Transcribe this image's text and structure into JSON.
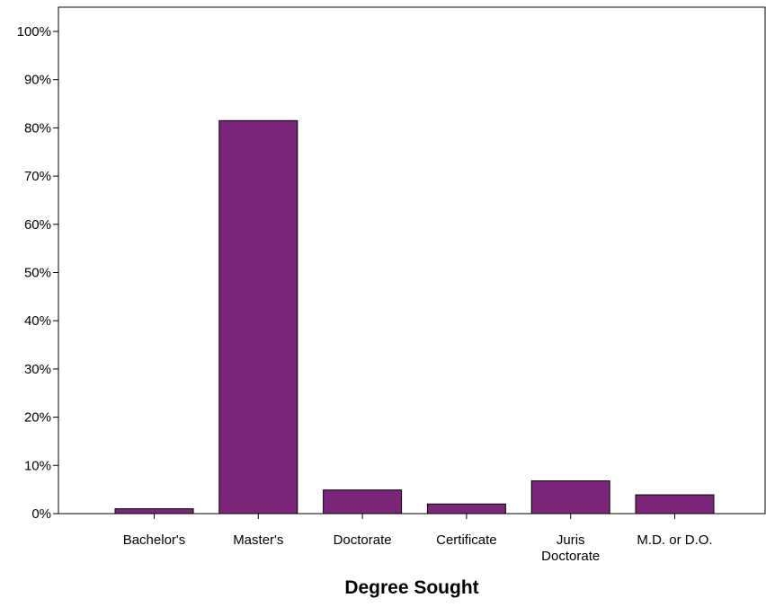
{
  "chart_data": {
    "type": "bar",
    "title": "",
    "xlabel": "Degree Sought",
    "ylabel": "",
    "categories": [
      "Bachelor's",
      "Master's",
      "Doctorate",
      "Certificate",
      "Juris Doctorate",
      "M.D. or D.O."
    ],
    "category_lines": [
      [
        "Bachelor's"
      ],
      [
        "Master's"
      ],
      [
        "Doctorate"
      ],
      [
        "Certificate"
      ],
      [
        "Juris",
        "Doctorate"
      ],
      [
        "M.D. or D.O."
      ]
    ],
    "values": [
      1.0,
      81.5,
      4.9,
      2.0,
      6.8,
      3.9
    ],
    "value_unit": "%",
    "ylim": [
      0,
      100
    ],
    "yticks": [
      0,
      10,
      20,
      30,
      40,
      50,
      60,
      70,
      80,
      90,
      100
    ],
    "ytick_labels": [
      "0%",
      "10%",
      "20%",
      "30%",
      "40%",
      "50%",
      "60%",
      "70%",
      "80%",
      "90%",
      "100%"
    ],
    "grid": false,
    "bar_color": "#7b267a",
    "bar_edge_color": "#000000"
  }
}
